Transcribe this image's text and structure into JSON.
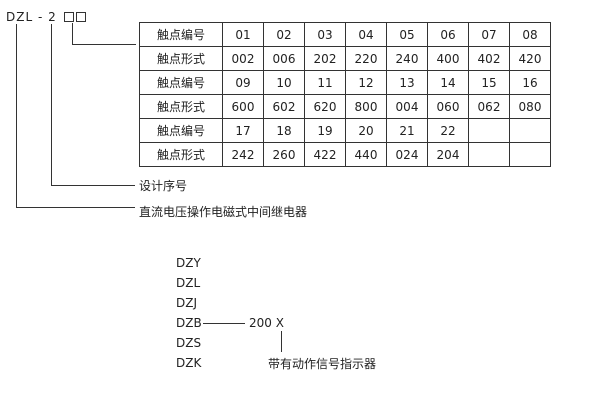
{
  "model_code": {
    "prefix": "DZL - 2",
    "placeholder_boxes": 2
  },
  "contact_table": {
    "rows": [
      {
        "label": "触点编号",
        "values": [
          "01",
          "02",
          "03",
          "04",
          "05",
          "06",
          "07",
          "08"
        ]
      },
      {
        "label": "触点形式",
        "values": [
          "002",
          "006",
          "202",
          "220",
          "240",
          "400",
          "402",
          "420"
        ]
      },
      {
        "label": "触点编号",
        "values": [
          "09",
          "10",
          "11",
          "12",
          "13",
          "14",
          "15",
          "16"
        ]
      },
      {
        "label": "触点形式",
        "values": [
          "600",
          "602",
          "620",
          "800",
          "004",
          "060",
          "062",
          "080"
        ]
      },
      {
        "label": "触点编号",
        "values": [
          "17",
          "18",
          "19",
          "20",
          "21",
          "22",
          "",
          ""
        ]
      },
      {
        "label": "触点形式",
        "values": [
          "242",
          "260",
          "422",
          "440",
          "024",
          "204",
          "",
          ""
        ]
      }
    ]
  },
  "annotations": {
    "design_serial": "设计序号",
    "relay_type": "直流电压操作电磁式中间继电器"
  },
  "series": {
    "models": [
      "DZY",
      "DZL",
      "DZJ",
      "DZB",
      "DZS",
      "DZK"
    ],
    "suffix": "200  X",
    "suffix_note": "带有动作信号指示器"
  }
}
